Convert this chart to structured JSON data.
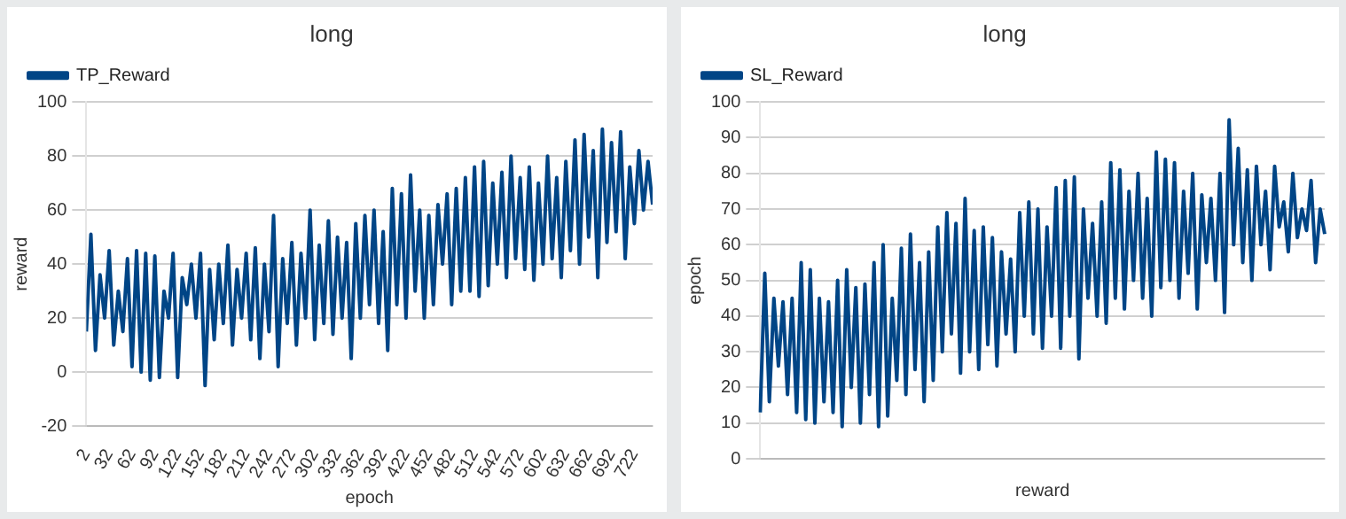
{
  "chart_data": [
    {
      "type": "line",
      "title": "long",
      "xlabel": "epoch",
      "ylabel": "reward",
      "legend": "top left",
      "grid": "y",
      "x": [
        2,
        8,
        14,
        20,
        26,
        32,
        38,
        44,
        50,
        56,
        62,
        68,
        74,
        80,
        86,
        92,
        98,
        104,
        110,
        116,
        122,
        128,
        134,
        140,
        146,
        152,
        158,
        164,
        170,
        176,
        182,
        188,
        194,
        200,
        206,
        212,
        218,
        224,
        230,
        236,
        242,
        248,
        254,
        260,
        266,
        272,
        278,
        284,
        290,
        296,
        302,
        308,
        314,
        320,
        326,
        332,
        338,
        344,
        350,
        356,
        362,
        368,
        374,
        380,
        386,
        392,
        398,
        404,
        410,
        416,
        422,
        428,
        434,
        440,
        446,
        452,
        458,
        464,
        470,
        476,
        482,
        488,
        494,
        500,
        506,
        512,
        518,
        524,
        530,
        536,
        542,
        548,
        554,
        560,
        566,
        572,
        578,
        584,
        590,
        596,
        602,
        608,
        614,
        620,
        626,
        632,
        638,
        644,
        650,
        656,
        662,
        668,
        674,
        680,
        686,
        692,
        698,
        704,
        710,
        716,
        722,
        728,
        734,
        740,
        746
      ],
      "xlim": [
        2,
        746
      ],
      "xticks": [
        2,
        32,
        62,
        92,
        122,
        152,
        182,
        212,
        242,
        272,
        302,
        332,
        362,
        392,
        422,
        452,
        482,
        512,
        542,
        572,
        602,
        632,
        662,
        692,
        722
      ],
      "ylim": [
        -20,
        100
      ],
      "yticks": [
        -20,
        0,
        20,
        40,
        60,
        80,
        100
      ],
      "series": [
        {
          "name": "TP_Reward",
          "color": "#004586",
          "values": [
            15,
            51,
            8,
            36,
            20,
            45,
            10,
            30,
            15,
            42,
            2,
            45,
            0,
            44,
            -3,
            43,
            -2,
            30,
            20,
            44,
            -2,
            35,
            25,
            40,
            20,
            44,
            -5,
            38,
            12,
            40,
            18,
            47,
            10,
            38,
            20,
            44,
            12,
            46,
            5,
            40,
            15,
            58,
            2,
            42,
            18,
            48,
            10,
            44,
            20,
            60,
            12,
            47,
            18,
            56,
            14,
            50,
            20,
            48,
            5,
            55,
            20,
            58,
            25,
            60,
            18,
            52,
            8,
            68,
            25,
            66,
            20,
            73,
            30,
            60,
            20,
            58,
            25,
            62,
            40,
            66,
            25,
            68,
            30,
            72,
            30,
            76,
            28,
            78,
            32,
            70,
            40,
            74,
            35,
            80,
            42,
            72,
            38,
            76,
            34,
            70,
            40,
            80,
            42,
            72,
            35,
            78,
            45,
            86,
            40,
            88,
            50,
            82,
            35,
            90,
            48,
            85,
            52,
            89,
            42,
            76,
            55,
            82,
            60,
            78,
            62
          ]
        }
      ]
    },
    {
      "type": "line",
      "title": "long",
      "xlabel": "reward",
      "ylabel": "epoch",
      "legend": "top left",
      "grid": "y",
      "tick_labels": "y",
      "categories": [
        null,
        null,
        null,
        null,
        null,
        null,
        null,
        null,
        null,
        null,
        null,
        null,
        null,
        null,
        null,
        null,
        null,
        null,
        null,
        null,
        null,
        null,
        null,
        null,
        null,
        null,
        null,
        null,
        null,
        null,
        null,
        null,
        null,
        null,
        null,
        null,
        null,
        null,
        null,
        null,
        null,
        null,
        null,
        null,
        null,
        null,
        null,
        null,
        null,
        null,
        null,
        null,
        null,
        null,
        null,
        null,
        null,
        null,
        null,
        null,
        null,
        null,
        null,
        null,
        null,
        null,
        null,
        null,
        null,
        null,
        null,
        null,
        null,
        null,
        null,
        null,
        null,
        null,
        null,
        null,
        null,
        null,
        null,
        null,
        null,
        null,
        null,
        null,
        null,
        null,
        null,
        null,
        null,
        null,
        null,
        null,
        null,
        null,
        null,
        null,
        null,
        null,
        null,
        null,
        null,
        null,
        null,
        null,
        null,
        null,
        null,
        null,
        null,
        null,
        null,
        null,
        null,
        null,
        null,
        null,
        null,
        null,
        null,
        null,
        null
      ],
      "ylim": [
        0,
        100
      ],
      "yticks": [
        0,
        10,
        20,
        30,
        40,
        50,
        60,
        70,
        80,
        90,
        100
      ],
      "series": [
        {
          "name": "SL_Reward",
          "color": "#004586",
          "values": [
            13,
            52,
            16,
            45,
            26,
            44,
            18,
            45,
            13,
            55,
            11,
            53,
            10,
            45,
            16,
            44,
            13,
            50,
            9,
            53,
            20,
            48,
            10,
            49,
            18,
            55,
            9,
            60,
            12,
            45,
            22,
            59,
            18,
            63,
            25,
            55,
            16,
            58,
            22,
            65,
            30,
            69,
            35,
            66,
            24,
            73,
            30,
            64,
            25,
            65,
            32,
            62,
            26,
            58,
            35,
            56,
            30,
            69,
            40,
            72,
            35,
            70,
            31,
            65,
            40,
            76,
            31,
            78,
            40,
            79,
            28,
            70,
            45,
            66,
            40,
            72,
            38,
            83,
            45,
            81,
            42,
            75,
            50,
            80,
            45,
            73,
            40,
            86,
            48,
            84,
            50,
            83,
            45,
            75,
            52,
            80,
            42,
            74,
            55,
            73,
            50,
            80,
            41,
            95,
            60,
            87,
            55,
            81,
            50,
            82,
            60,
            75,
            53,
            82,
            65,
            72,
            58,
            80,
            62,
            70,
            64,
            78,
            55,
            70,
            63
          ]
        }
      ]
    }
  ]
}
